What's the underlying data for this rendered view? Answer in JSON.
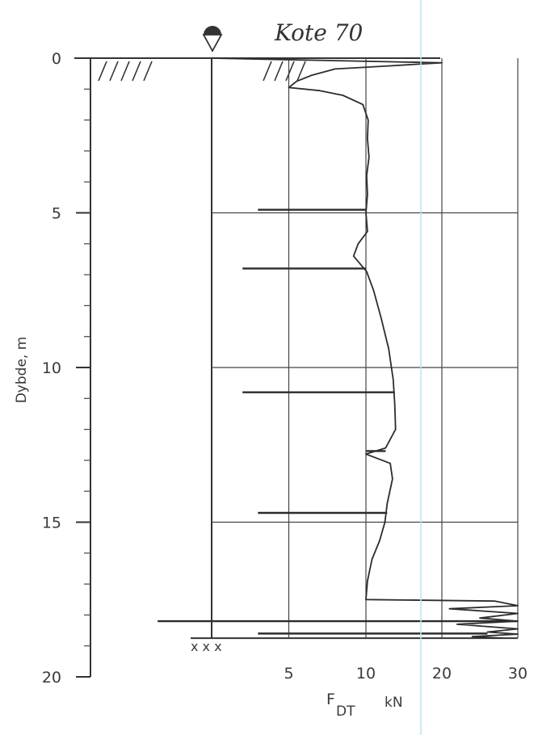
{
  "chart_data": {
    "type": "line",
    "title": "Kote 70",
    "xlabel_main": "F",
    "xlabel_sub": "DT",
    "xlabel_unit": "kN",
    "ylabel": "Dybde, m",
    "y_ticks": [
      "0",
      "5",
      "10",
      "15",
      "20"
    ],
    "x_ticks": [
      "5",
      "10",
      "20",
      "30"
    ],
    "ylim": [
      0,
      20
    ],
    "x_scale": "linear 0–10, then 10–30 compressed",
    "bottom_marker": "x x x",
    "series": [
      {
        "points": [
          [
            20,
            0.15
          ],
          [
            13,
            0.25
          ],
          [
            8,
            0.35
          ],
          [
            6.5,
            0.55
          ],
          [
            5.5,
            0.75
          ],
          [
            5,
            0.95
          ],
          [
            7,
            1.05
          ],
          [
            8.5,
            1.2
          ],
          [
            9.8,
            1.5
          ],
          [
            10.3,
            2.0
          ],
          [
            10.2,
            2.6
          ],
          [
            10.4,
            3.2
          ],
          [
            10.1,
            3.8
          ],
          [
            10.2,
            4.4
          ],
          [
            10.0,
            5.0
          ],
          [
            10.2,
            5.6
          ],
          [
            9.5,
            6.0
          ],
          [
            9.2,
            6.4
          ],
          [
            10.1,
            6.9
          ],
          [
            11.0,
            7.5
          ],
          [
            12.0,
            8.4
          ],
          [
            13.0,
            9.4
          ],
          [
            13.6,
            10.4
          ],
          [
            13.8,
            11.2
          ],
          [
            13.9,
            12.0
          ],
          [
            12.6,
            12.6
          ],
          [
            10.0,
            12.8
          ],
          [
            13.2,
            13.1
          ],
          [
            13.5,
            13.6
          ],
          [
            12.8,
            14.4
          ],
          [
            12.5,
            15.0
          ],
          [
            11.8,
            15.6
          ],
          [
            10.8,
            16.2
          ],
          [
            10.2,
            16.9
          ],
          [
            10.0,
            17.5
          ],
          [
            27,
            17.55
          ],
          [
            30,
            17.7
          ],
          [
            21,
            17.8
          ],
          [
            30,
            17.95
          ],
          [
            25,
            18.1
          ],
          [
            30,
            18.2
          ],
          [
            22,
            18.3
          ],
          [
            30,
            18.45
          ],
          [
            26,
            18.55
          ],
          [
            30,
            18.62
          ],
          [
            24,
            18.7
          ],
          [
            28,
            18.75
          ]
        ]
      }
    ],
    "spikes": [
      {
        "depth": 4.9,
        "x_from": 3.0,
        "x_to": 10
      },
      {
        "depth": 6.8,
        "x_from": 2.0,
        "x_to": 10
      },
      {
        "depth": 10.8,
        "x_from": 2.0,
        "x_to": 13.8
      },
      {
        "depth": 12.7,
        "x_from": 10,
        "x_to": 12.6
      },
      {
        "depth": 14.7,
        "x_from": 3.0,
        "x_to": 12.8
      },
      {
        "depth": 18.2,
        "x_from": -3.5,
        "x_to": 30
      },
      {
        "depth": 18.6,
        "x_from": 3.0,
        "x_to": 26
      }
    ],
    "ground_surface_depth": 0,
    "water_level_depth": 0,
    "end_depth": 18.75,
    "grid": true
  }
}
